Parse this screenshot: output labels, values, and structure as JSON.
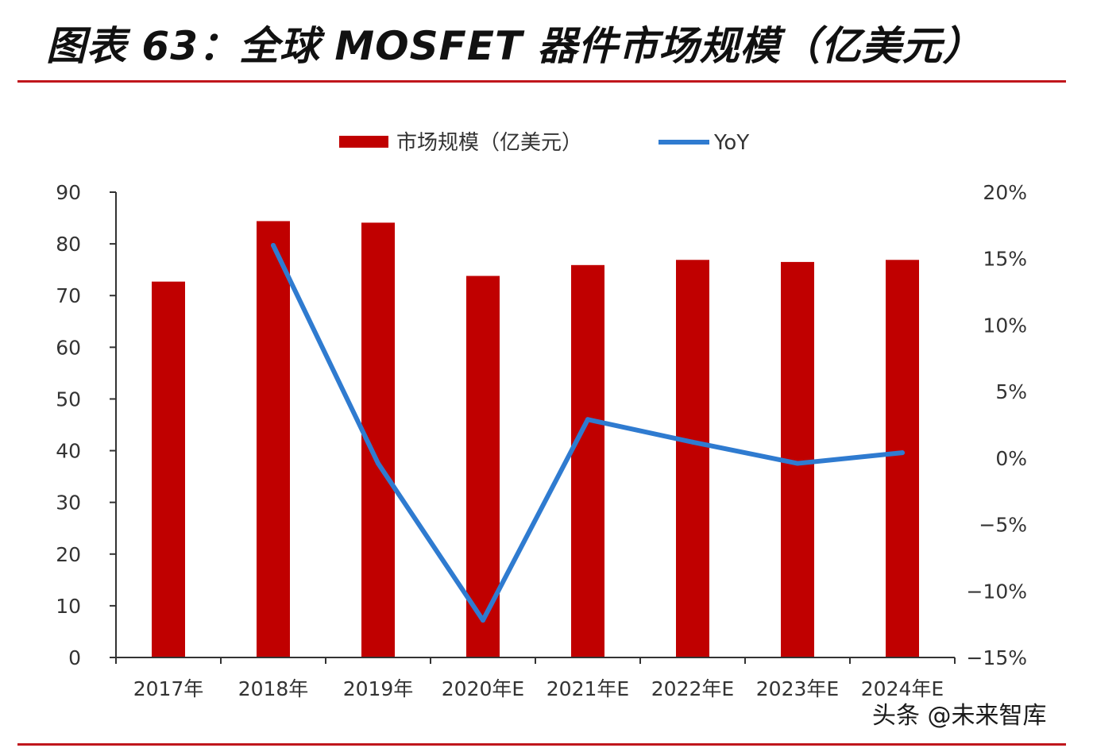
{
  "header": {
    "title": "图表 63：全球 MOSFET 器件市场规模（亿美元）"
  },
  "watermark": "头条 @未来智库",
  "colors": {
    "bar": "#c00000",
    "line": "#2f7bd0",
    "rule": "#c0161c",
    "axis": "#333333"
  },
  "chart_data": {
    "type": "bar",
    "title": "",
    "xlabel": "",
    "ylabel": "",
    "categories": [
      "2017年",
      "2018年",
      "2019年",
      "2020年E",
      "2021年E",
      "2022年E",
      "2023年E",
      "2024年E"
    ],
    "series": [
      {
        "name": "市场规模（亿美元）",
        "type": "bar",
        "axis": "left",
        "values": [
          72.7,
          84.4,
          84.1,
          73.8,
          75.9,
          76.9,
          76.5,
          76.9
        ]
      },
      {
        "name": "YoY",
        "type": "line",
        "axis": "right",
        "values": [
          null,
          16.0,
          -0.4,
          -12.2,
          2.9,
          1.2,
          -0.4,
          0.4
        ]
      }
    ],
    "left_axis": {
      "ylim": [
        0,
        90
      ],
      "ticks": [
        "0",
        "10",
        "20",
        "30",
        "40",
        "50",
        "60",
        "70",
        "80",
        "90"
      ],
      "tick_values": [
        0,
        10,
        20,
        30,
        40,
        50,
        60,
        70,
        80,
        90
      ]
    },
    "right_axis": {
      "ylim": [
        -15,
        20
      ],
      "ticks": [
        "−15%",
        "−10%",
        "−5%",
        "0%",
        "5%",
        "10%",
        "15%",
        "20%"
      ],
      "tick_values": [
        -15,
        -10,
        -5,
        0,
        5,
        10,
        15,
        20
      ]
    },
    "legend_position": "top-center",
    "grid": false
  }
}
